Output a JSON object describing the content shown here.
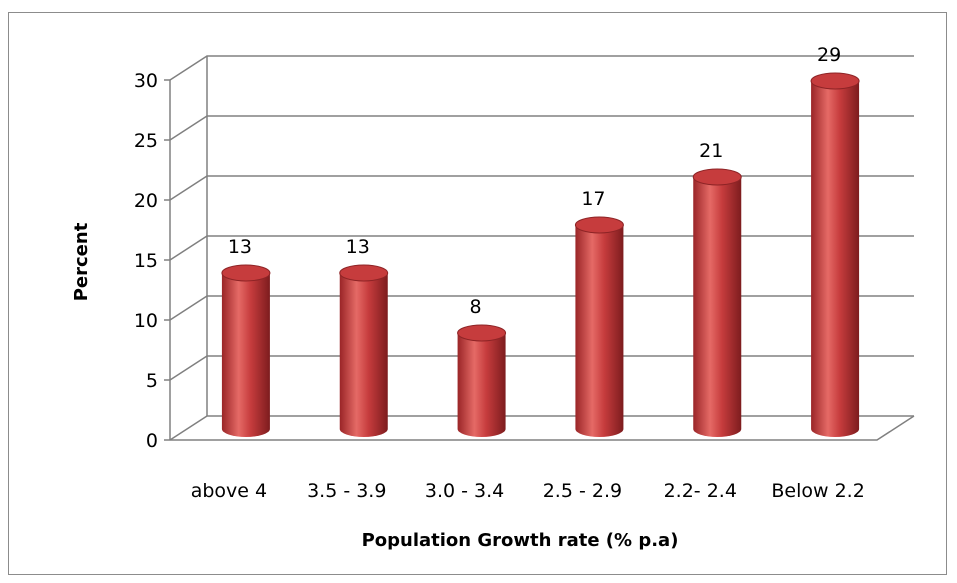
{
  "chart_data": {
    "type": "bar",
    "style": "3d-cylinder",
    "title": "",
    "xlabel": "Population Growth rate (% p.a)",
    "ylabel": "Percent",
    "categories": [
      "above 4",
      "3.5 - 3.9",
      "3.0 - 3.4",
      "2.5 - 2.9",
      "2.2- 2.4",
      "Below 2.2"
    ],
    "values": [
      13,
      13,
      8,
      17,
      21,
      29
    ],
    "data_labels": [
      "13",
      "13",
      "8",
      "17",
      "21",
      "29"
    ],
    "ylim": [
      0,
      30
    ],
    "yticks": [
      0,
      5,
      10,
      15,
      20,
      25,
      30
    ],
    "ytick_labels": [
      "0",
      "5",
      "10",
      "15",
      "20",
      "25",
      "30"
    ],
    "grid": true,
    "legend": "none",
    "colors": {
      "bar": "#c0393b",
      "bar_highlight": "#e66a67",
      "bar_shadow": "#7e1d1f",
      "grid": "#808080"
    }
  }
}
